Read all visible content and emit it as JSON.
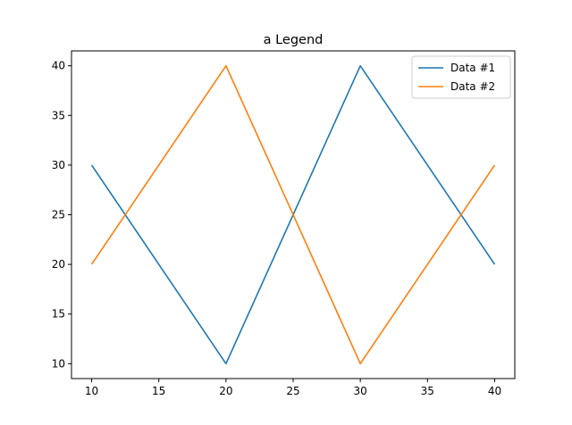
{
  "chart_data": {
    "type": "line",
    "title": "a Legend",
    "xlabel": "",
    "ylabel": "",
    "x": [
      10,
      20,
      30,
      40
    ],
    "xlim": [
      8.5,
      41.5
    ],
    "ylim": [
      8.5,
      41.5
    ],
    "xticks": [
      10,
      15,
      20,
      25,
      30,
      35,
      40
    ],
    "yticks": [
      10,
      15,
      20,
      25,
      30,
      35,
      40
    ],
    "grid": false,
    "legend_position": "top-right",
    "series": [
      {
        "name": "Data #1",
        "values": [
          30,
          10,
          40,
          20
        ],
        "color": "#1f77b4"
      },
      {
        "name": "Data #2",
        "values": [
          20,
          40,
          10,
          30
        ],
        "color": "#ff7f0e"
      }
    ]
  }
}
